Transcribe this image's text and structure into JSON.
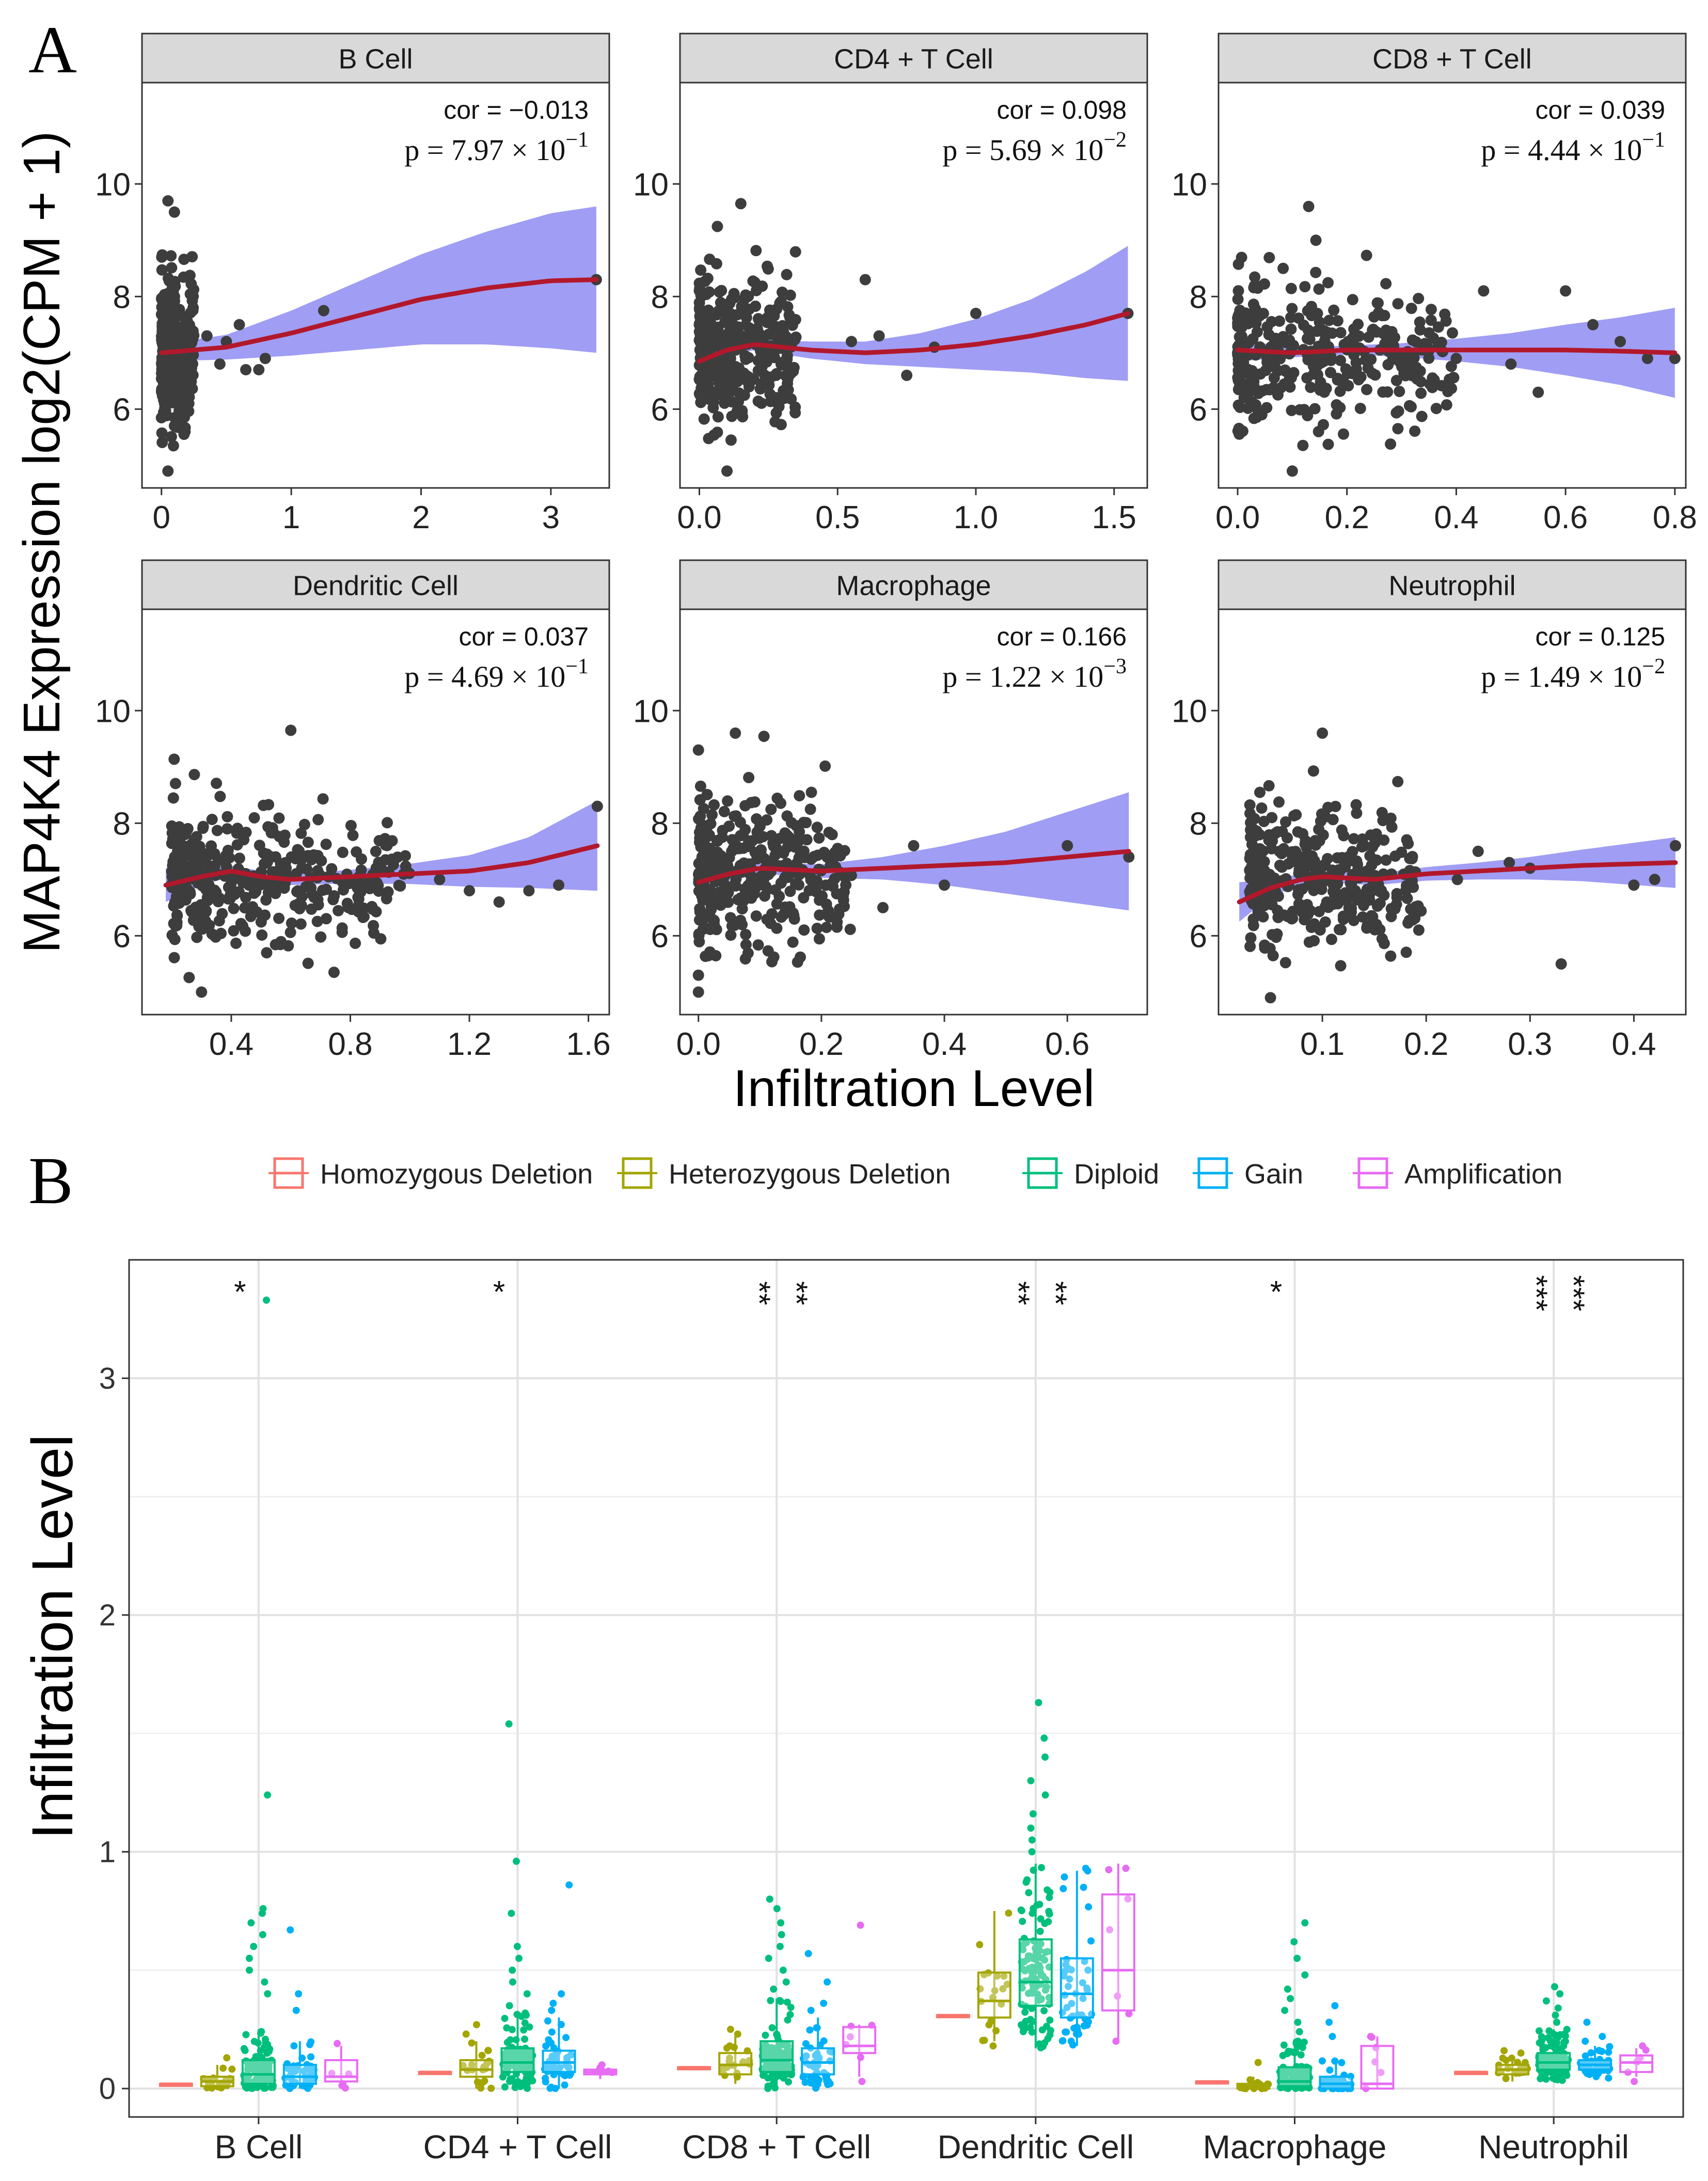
{
  "panel_a": {
    "label": "A",
    "ylabel": "MAP4K4 Expression log2(CPM + 1)",
    "xlabel": "Infiltration Level",
    "cor_prefix": "cor = ",
    "p_prefix": "p = ",
    "times": "×",
    "colors": {
      "points": "#3d3d3d",
      "ribbon": "#8f8cf2",
      "smooth": "#b2182b",
      "strip": "#d9d9d9"
    }
  },
  "panel_b": {
    "label": "B",
    "ylabel": "Infiltration Level",
    "legend": [
      {
        "label": "Homozygous Deletion",
        "color": "#f8766d"
      },
      {
        "label": "Heterozygous Deletion",
        "color": "#a3a500"
      },
      {
        "label": "Diploid",
        "color": "#00bf7d"
      },
      {
        "label": "Gain",
        "color": "#00b0f6"
      },
      {
        "label": "Amplification",
        "color": "#e76bf3"
      }
    ]
  },
  "chart_data": [
    {
      "type": "scatter",
      "panel": "A",
      "title": "B Cell",
      "cor": "−0.013",
      "p_mantissa": "7.97",
      "p_exponent": "−1",
      "xlim": [
        -0.15,
        3.45
      ],
      "xticks": [
        0,
        1,
        2,
        3
      ],
      "xtick_labels": [
        "0",
        "1",
        "2",
        "3"
      ],
      "ylim": [
        4.6,
        11.8
      ],
      "yticks": [
        6,
        8,
        10
      ],
      "ytick_labels": [
        "6",
        "8",
        "10"
      ],
      "smooth": {
        "x": [
          0,
          0.5,
          1,
          1.5,
          2,
          2.5,
          3,
          3.35
        ],
        "y": [
          7.0,
          7.1,
          7.35,
          7.65,
          7.95,
          8.15,
          8.28,
          8.3
        ]
      },
      "ribbon_halfwidth": [
        0.15,
        0.22,
        0.4,
        0.6,
        0.8,
        1.0,
        1.2,
        1.3
      ],
      "cluster": {
        "x_range": [
          0.0,
          0.25
        ],
        "center": 7.0,
        "spread": 0.75,
        "count": 320
      },
      "outliers": [
        [
          0.35,
          7.3
        ],
        [
          0.5,
          7.2
        ],
        [
          0.65,
          6.7
        ],
        [
          0.75,
          6.7
        ],
        [
          0.8,
          6.9
        ],
        [
          1.25,
          7.75
        ],
        [
          3.35,
          8.3
        ],
        [
          0.05,
          9.7
        ],
        [
          0.1,
          9.5
        ],
        [
          0.05,
          4.9
        ],
        [
          0.6,
          7.5
        ],
        [
          0.45,
          6.8
        ]
      ]
    },
    {
      "type": "scatter",
      "panel": "A",
      "title": "CD4 + T Cell",
      "cor": "0.098",
      "p_mantissa": "5.69",
      "p_exponent": "−2",
      "xlim": [
        -0.07,
        1.62
      ],
      "xticks": [
        0,
        0.5,
        1,
        1.5
      ],
      "xtick_labels": [
        "0.0",
        "0.5",
        "1.0",
        "1.5"
      ],
      "ylim": [
        4.6,
        11.8
      ],
      "yticks": [
        6,
        8,
        10
      ],
      "ytick_labels": [
        "6",
        "8",
        "10"
      ],
      "smooth": {
        "x": [
          0,
          0.1,
          0.2,
          0.4,
          0.6,
          0.8,
          1.0,
          1.2,
          1.4,
          1.55
        ],
        "y": [
          6.85,
          7.05,
          7.15,
          7.05,
          7.0,
          7.05,
          7.15,
          7.3,
          7.5,
          7.7
        ]
      },
      "ribbon_halfwidth": [
        0.3,
        0.1,
        0.1,
        0.15,
        0.2,
        0.3,
        0.45,
        0.65,
        0.95,
        1.2
      ],
      "cluster": {
        "x_range": [
          0.0,
          0.35
        ],
        "center": 7.05,
        "spread": 0.7,
        "count": 330
      },
      "outliers": [
        [
          0.55,
          7.2
        ],
        [
          0.6,
          8.3
        ],
        [
          0.65,
          7.3
        ],
        [
          0.75,
          6.6
        ],
        [
          0.85,
          7.1
        ],
        [
          1.0,
          7.7
        ],
        [
          1.55,
          7.7
        ],
        [
          0.15,
          9.65
        ],
        [
          0.1,
          4.9
        ]
      ]
    },
    {
      "type": "scatter",
      "panel": "A",
      "title": "CD8 + T Cell",
      "cor": "0.039",
      "p_mantissa": "4.44",
      "p_exponent": "−1",
      "xlim": [
        -0.035,
        0.82
      ],
      "xticks": [
        0,
        0.2,
        0.4,
        0.6,
        0.8
      ],
      "xtick_labels": [
        "0.0",
        "0.2",
        "0.4",
        "0.6",
        "0.8"
      ],
      "ylim": [
        4.6,
        11.8
      ],
      "yticks": [
        6,
        8,
        10
      ],
      "ytick_labels": [
        "6",
        "8",
        "10"
      ],
      "smooth": {
        "x": [
          0,
          0.1,
          0.2,
          0.3,
          0.4,
          0.5,
          0.6,
          0.7,
          0.8
        ],
        "y": [
          7.05,
          7.0,
          7.05,
          7.05,
          7.05,
          7.05,
          7.05,
          7.03,
          7.0
        ]
      },
      "ribbon_halfwidth": [
        0.2,
        0.08,
        0.08,
        0.12,
        0.2,
        0.3,
        0.45,
        0.6,
        0.8
      ],
      "cluster": {
        "x_range": [
          0.0,
          0.4
        ],
        "center": 7.0,
        "spread": 0.75,
        "count": 340
      },
      "outliers": [
        [
          0.45,
          8.1
        ],
        [
          0.5,
          6.8
        ],
        [
          0.55,
          6.3
        ],
        [
          0.6,
          8.1
        ],
        [
          0.65,
          7.5
        ],
        [
          0.7,
          7.2
        ],
        [
          0.75,
          6.9
        ],
        [
          0.8,
          6.9
        ],
        [
          0.13,
          9.6
        ],
        [
          0.1,
          4.9
        ]
      ]
    },
    {
      "type": "scatter",
      "panel": "A",
      "title": "Dendritic Cell",
      "cor": "0.037",
      "p_mantissa": "4.69",
      "p_exponent": "−1",
      "xlim": [
        0.1,
        1.67
      ],
      "xticks": [
        0.4,
        0.8,
        1.2,
        1.6
      ],
      "xtick_labels": [
        "0.4",
        "0.8",
        "1.2",
        "1.6"
      ],
      "ylim": [
        4.6,
        11.8
      ],
      "yticks": [
        6,
        8,
        10
      ],
      "ytick_labels": [
        "6",
        "8",
        "10"
      ],
      "smooth": {
        "x": [
          0.18,
          0.3,
          0.4,
          0.5,
          0.6,
          0.8,
          1.0,
          1.2,
          1.4,
          1.63
        ],
        "y": [
          6.9,
          7.05,
          7.15,
          7.05,
          7.0,
          7.05,
          7.1,
          7.15,
          7.3,
          7.6
        ]
      },
      "ribbon_halfwidth": [
        0.3,
        0.15,
        0.1,
        0.1,
        0.1,
        0.12,
        0.18,
        0.28,
        0.45,
        0.8
      ],
      "cluster": {
        "x_range": [
          0.2,
          1.0
        ],
        "center": 7.0,
        "spread": 0.75,
        "count": 380
      },
      "outliers": [
        [
          1.1,
          7.0
        ],
        [
          1.2,
          6.8
        ],
        [
          1.3,
          6.6
        ],
        [
          1.4,
          6.8
        ],
        [
          1.5,
          6.9
        ],
        [
          1.63,
          8.3
        ],
        [
          0.6,
          9.65
        ],
        [
          0.3,
          5.0
        ]
      ]
    },
    {
      "type": "scatter",
      "panel": "A",
      "title": "Macrophage",
      "cor": "0.166",
      "p_mantissa": "1.22",
      "p_exponent": "−3",
      "xlim": [
        -0.03,
        0.73
      ],
      "xticks": [
        0,
        0.2,
        0.4,
        0.6
      ],
      "xtick_labels": [
        "0.0",
        "0.2",
        "0.4",
        "0.6"
      ],
      "ylim": [
        4.6,
        11.8
      ],
      "yticks": [
        6,
        8,
        10
      ],
      "ytick_labels": [
        "6",
        "8",
        "10"
      ],
      "smooth": {
        "x": [
          0,
          0.05,
          0.1,
          0.2,
          0.3,
          0.4,
          0.5,
          0.6,
          0.7
        ],
        "y": [
          6.95,
          7.1,
          7.2,
          7.15,
          7.2,
          7.25,
          7.3,
          7.4,
          7.5
        ]
      },
      "ribbon_halfwidth": [
        0.25,
        0.12,
        0.1,
        0.12,
        0.2,
        0.35,
        0.55,
        0.8,
        1.05
      ],
      "cluster": {
        "x_range": [
          0.0,
          0.25
        ],
        "center": 7.05,
        "spread": 0.75,
        "count": 330
      },
      "outliers": [
        [
          0.0,
          5.0
        ],
        [
          0.0,
          5.3
        ],
        [
          0.0,
          9.3
        ],
        [
          0.06,
          9.6
        ],
        [
          0.3,
          6.5
        ],
        [
          0.35,
          7.6
        ],
        [
          0.4,
          6.9
        ],
        [
          0.6,
          7.6
        ],
        [
          0.7,
          7.4
        ]
      ]
    },
    {
      "type": "scatter",
      "panel": "A",
      "title": "Neutrophil",
      "cor": "0.125",
      "p_mantissa": "1.49",
      "p_exponent": "−2",
      "xlim": [
        0.0,
        0.45
      ],
      "xticks": [
        0.1,
        0.2,
        0.3,
        0.4
      ],
      "xtick_labels": [
        "0.1",
        "0.2",
        "0.3",
        "0.4"
      ],
      "ylim": [
        4.6,
        11.8
      ],
      "yticks": [
        6,
        8,
        10
      ],
      "ytick_labels": [
        "6",
        "8",
        "10"
      ],
      "smooth": {
        "x": [
          0.02,
          0.05,
          0.08,
          0.1,
          0.15,
          0.2,
          0.25,
          0.3,
          0.35,
          0.44
        ],
        "y": [
          6.6,
          6.85,
          7.0,
          7.05,
          7.0,
          7.1,
          7.15,
          7.2,
          7.25,
          7.3
        ]
      },
      "ribbon_halfwidth": [
        0.35,
        0.15,
        0.1,
        0.1,
        0.1,
        0.12,
        0.15,
        0.2,
        0.28,
        0.45
      ],
      "cluster": {
        "x_range": [
          0.03,
          0.2
        ],
        "center": 7.0,
        "spread": 0.7,
        "count": 360
      },
      "outliers": [
        [
          0.23,
          7.0
        ],
        [
          0.25,
          7.5
        ],
        [
          0.28,
          7.3
        ],
        [
          0.3,
          7.2
        ],
        [
          0.33,
          5.5
        ],
        [
          0.4,
          6.9
        ],
        [
          0.42,
          7.0
        ],
        [
          0.44,
          7.6
        ],
        [
          0.1,
          9.6
        ],
        [
          0.05,
          4.9
        ]
      ]
    },
    {
      "type": "box",
      "panel": "B",
      "categories": [
        "B Cell",
        "CD4 + T Cell",
        "CD8 + T Cell",
        "Dendritic Cell",
        "Macrophage",
        "Neutrophil"
      ],
      "series": [
        "Homozygous Deletion",
        "Heterozygous Deletion",
        "Diploid",
        "Gain",
        "Amplification"
      ],
      "ylim": [
        -0.12,
        3.5
      ],
      "yticks": [
        0,
        1,
        2,
        3
      ],
      "ytick_labels": [
        "0",
        "1",
        "2",
        "3"
      ],
      "significance": [
        [
          "*"
        ],
        [
          "*"
        ],
        [
          "**",
          "**"
        ],
        [
          "**",
          "**"
        ],
        [
          "*"
        ],
        [
          "***",
          "***"
        ]
      ],
      "boxes": [
        [
          [
            0.02,
            0.02,
            0.02,
            0.02,
            0.02
          ],
          [
            0.0,
            0.01,
            0.03,
            0.05,
            0.1
          ],
          [
            0.0,
            0.02,
            0.06,
            0.12,
            0.25
          ],
          [
            0.0,
            0.02,
            0.05,
            0.1,
            0.2
          ],
          [
            0.0,
            0.03,
            0.05,
            0.12,
            0.18
          ]
        ],
        [
          [
            0.07,
            0.07,
            0.07,
            0.07,
            0.07
          ],
          [
            0.0,
            0.05,
            0.08,
            0.12,
            0.2
          ],
          [
            0.0,
            0.07,
            0.11,
            0.17,
            0.32
          ],
          [
            0.0,
            0.07,
            0.11,
            0.16,
            0.3
          ],
          [
            0.04,
            0.06,
            0.07,
            0.08,
            0.1
          ]
        ],
        [
          [
            0.09,
            0.09,
            0.09,
            0.09,
            0.09
          ],
          [
            0.02,
            0.06,
            0.1,
            0.15,
            0.22
          ],
          [
            0.0,
            0.07,
            0.12,
            0.2,
            0.38
          ],
          [
            0.0,
            0.06,
            0.11,
            0.17,
            0.3
          ],
          [
            0.05,
            0.15,
            0.18,
            0.26,
            0.27
          ]
        ],
        [
          [
            0.31,
            0.31,
            0.31,
            0.31,
            0.31
          ],
          [
            0.2,
            0.3,
            0.37,
            0.49,
            0.75
          ],
          [
            0.17,
            0.35,
            0.45,
            0.63,
            0.95
          ],
          [
            0.18,
            0.3,
            0.4,
            0.55,
            0.92
          ],
          [
            0.2,
            0.33,
            0.5,
            0.82,
            0.95
          ]
        ],
        [
          [
            0.03,
            0.03,
            0.03,
            0.03,
            0.03
          ],
          [
            0.0,
            0.0,
            0.01,
            0.02,
            0.05
          ],
          [
            0.0,
            0.01,
            0.03,
            0.09,
            0.2
          ],
          [
            0.0,
            0.0,
            0.02,
            0.05,
            0.12
          ],
          [
            0.0,
            0.0,
            0.02,
            0.18,
            0.22
          ]
        ],
        [
          [
            0.07,
            0.07,
            0.07,
            0.07,
            0.07
          ],
          [
            0.03,
            0.06,
            0.08,
            0.1,
            0.14
          ],
          [
            0.03,
            0.08,
            0.11,
            0.15,
            0.25
          ],
          [
            0.04,
            0.08,
            0.1,
            0.12,
            0.18
          ],
          [
            0.05,
            0.07,
            0.11,
            0.14,
            0.17
          ]
        ]
      ],
      "outliers": [
        [
          [],
          [
            0.13
          ],
          [
            1.24,
            0.76,
            0.74,
            0.7,
            0.65,
            0.6,
            0.55,
            0.5,
            0.45,
            0.4,
            3.33
          ],
          [
            0.67,
            0.4,
            0.33
          ],
          [
            0.19
          ]
        ],
        [
          [],
          [
            0.27,
            0.23
          ],
          [
            1.54,
            0.96,
            0.74,
            0.6,
            0.55,
            0.5,
            0.45,
            0.4,
            0.35
          ],
          [
            0.86,
            0.4,
            0.36,
            0.33
          ],
          [
            0.1
          ]
        ],
        [
          [],
          [
            0.23,
            0.25
          ],
          [
            0.8,
            0.76,
            0.7,
            0.65,
            0.6,
            0.55,
            0.5,
            0.45,
            0.42
          ],
          [
            0.57,
            0.45,
            0.36,
            0.33
          ],
          [
            0.69,
            0.03
          ]
        ],
        [
          [],
          [
            0.18
          ],
          [
            1.63,
            1.48,
            1.4,
            1.3,
            1.24,
            1.16,
            1.1,
            1.05,
            1.0
          ],
          [
            0.93,
            0.85
          ],
          [
            0.93,
            0.2
          ]
        ],
        [
          [],
          [
            0.11
          ],
          [
            0.7,
            0.62,
            0.55,
            0.48,
            0.42,
            0.38,
            0.33,
            0.28,
            0.24
          ],
          [
            0.35,
            0.28,
            0.22
          ],
          [
            0.22
          ]
        ],
        [
          [],
          [
            0.15,
            0.16
          ],
          [
            0.43,
            0.4,
            0.37,
            0.34,
            0.31,
            0.28
          ],
          [
            0.28,
            0.22,
            0.2
          ],
          [
            0.18,
            0.03
          ]
        ]
      ]
    }
  ]
}
